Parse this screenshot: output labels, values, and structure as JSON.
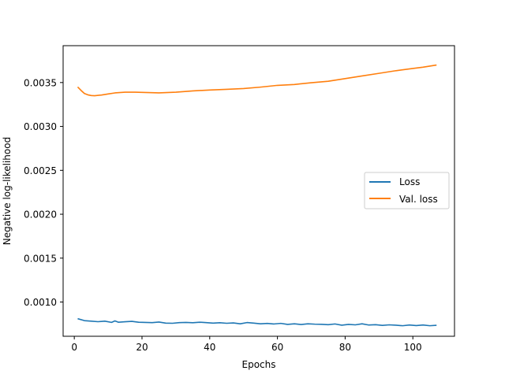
{
  "chart_data": {
    "type": "line",
    "title": "",
    "xlabel": "Epochs",
    "ylabel": "Negative log-likelihood",
    "xlim": [
      -3.3,
      112.3
    ],
    "ylim": [
      0.00061,
      0.00392
    ],
    "xticks": [
      0,
      20,
      40,
      60,
      80,
      100
    ],
    "yticks": [
      0.001,
      0.0015,
      0.002,
      0.0025,
      0.003,
      0.0035
    ],
    "ytick_labels": [
      "0.0010",
      "0.0015",
      "0.0020",
      "0.0025",
      "0.0030",
      "0.0035"
    ],
    "grid": false,
    "legend_position": "center-right",
    "series": [
      {
        "name": "Loss",
        "color": "#1f77b4",
        "x": [
          1,
          3,
          5,
          7,
          9,
          11,
          12,
          13,
          15,
          17,
          19,
          21,
          23,
          25,
          27,
          29,
          31,
          33,
          35,
          37,
          39,
          41,
          43,
          45,
          47,
          49,
          51,
          53,
          55,
          57,
          59,
          61,
          63,
          65,
          67,
          69,
          71,
          73,
          75,
          77,
          79,
          81,
          83,
          85,
          87,
          89,
          91,
          93,
          95,
          97,
          99,
          101,
          103,
          105,
          107
        ],
        "y": [
          0.00081,
          0.000788,
          0.000782,
          0.000776,
          0.000782,
          0.000768,
          0.000785,
          0.00077,
          0.000775,
          0.00078,
          0.00077,
          0.000768,
          0.000765,
          0.000772,
          0.00076,
          0.000758,
          0.000765,
          0.000768,
          0.000764,
          0.00077,
          0.000765,
          0.00076,
          0.000764,
          0.000758,
          0.000762,
          0.000752,
          0.000766,
          0.00076,
          0.000752,
          0.000756,
          0.00075,
          0.000757,
          0.000745,
          0.000752,
          0.000744,
          0.000752,
          0.000748,
          0.000746,
          0.000742,
          0.00075,
          0.000736,
          0.000745,
          0.00074,
          0.000752,
          0.000738,
          0.000742,
          0.000734,
          0.00074,
          0.000736,
          0.00073,
          0.000738,
          0.000732,
          0.000738,
          0.00073,
          0.000735
        ]
      },
      {
        "name": "Val. loss",
        "color": "#ff7f0e",
        "x": [
          1,
          2,
          3,
          4,
          5,
          6,
          8,
          10,
          12,
          15,
          18,
          20,
          25,
          30,
          35,
          40,
          45,
          50,
          55,
          60,
          65,
          70,
          75,
          80,
          85,
          90,
          95,
          100,
          103,
          107
        ],
        "y": [
          0.00345,
          0.00341,
          0.003375,
          0.00336,
          0.003352,
          0.00335,
          0.003358,
          0.00337,
          0.003382,
          0.00339,
          0.00339,
          0.003388,
          0.003382,
          0.00339,
          0.003405,
          0.003415,
          0.003423,
          0.003432,
          0.003448,
          0.003468,
          0.003478,
          0.003498,
          0.003515,
          0.003545,
          0.003575,
          0.003605,
          0.003635,
          0.00366,
          0.003675,
          0.0037
        ]
      }
    ]
  }
}
